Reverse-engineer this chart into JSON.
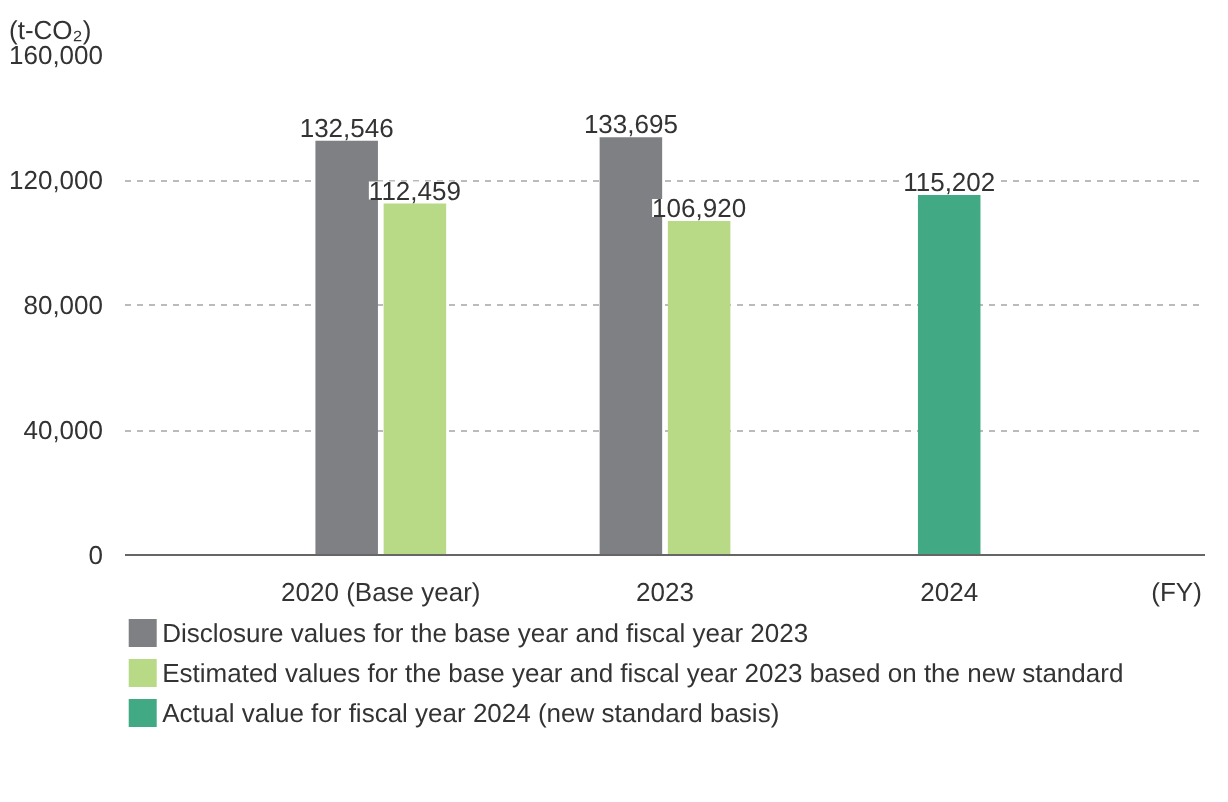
{
  "chart_data": {
    "type": "bar",
    "ylabel": "(t-CO₂)",
    "xlabel": "(FY)",
    "categories": [
      "2020 (Base year)",
      "2023",
      "2024"
    ],
    "series": [
      {
        "name": "Disclosure values for the base year and fiscal year 2023",
        "color": "#7f8084",
        "values": [
          132546,
          133695,
          null
        ],
        "value_labels": [
          "132,546",
          "133,695",
          null
        ]
      },
      {
        "name": "Estimated values for the base year and fiscal year 2023 based on the new standard",
        "color": "#b8d986",
        "values": [
          112459,
          106920,
          null
        ],
        "value_labels": [
          "112,459",
          "106,920",
          null
        ]
      },
      {
        "name": "Actual value for fiscal year 2024 (new standard basis)",
        "color": "#41aa84",
        "values": [
          null,
          null,
          115202
        ],
        "value_labels": [
          null,
          null,
          "115,202"
        ]
      }
    ],
    "ylim": [
      0,
      160000
    ],
    "yticks": [
      {
        "value": 0,
        "label": "0"
      },
      {
        "value": 40000,
        "label": "40,000"
      },
      {
        "value": 80000,
        "label": "80,000"
      },
      {
        "value": 120000,
        "label": "120,000"
      },
      {
        "value": 160000,
        "label": "160,000"
      }
    ],
    "grid": "y",
    "legend": "bottom",
    "data_labels": true
  }
}
